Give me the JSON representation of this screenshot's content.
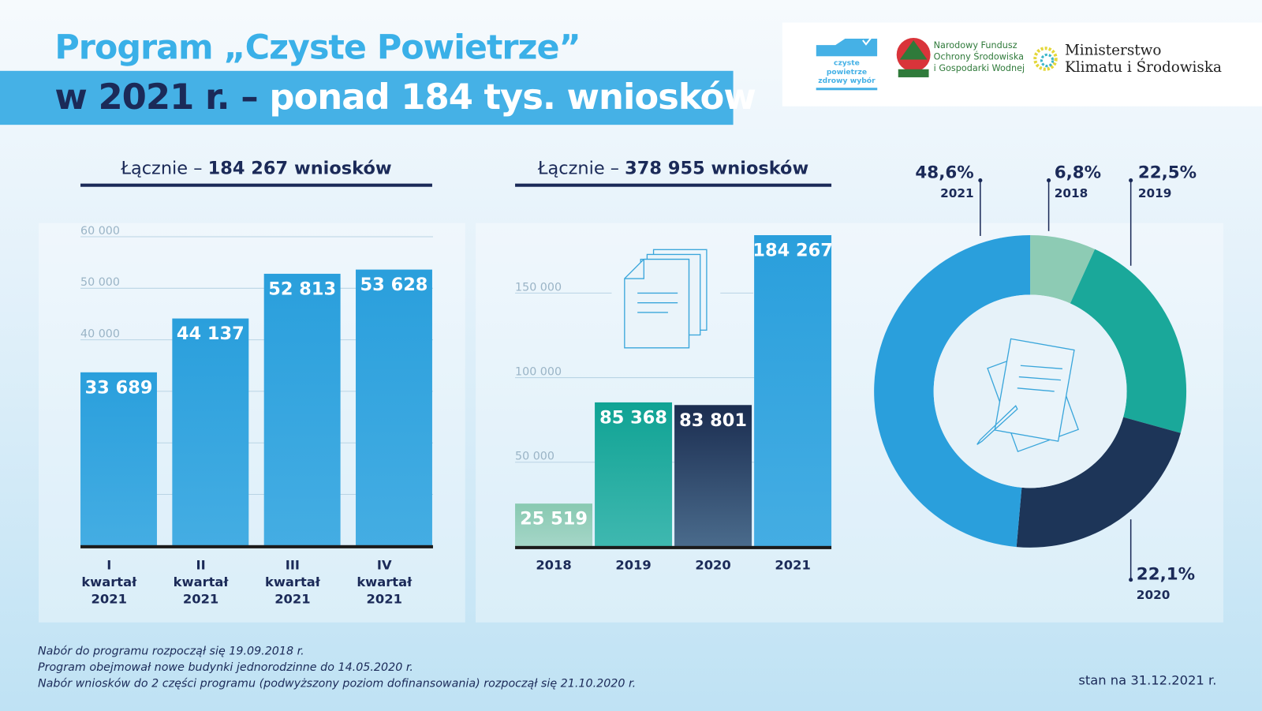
{
  "header": {
    "title_line1": "Program „Czyste Powietrze”",
    "title_line2_dark": "w 2021 r. –",
    "title_line2_light": " ponad 184 tys. wniosków"
  },
  "logos": {
    "cp_logo_text": [
      "czyste powietrze",
      "zdrowy wybór"
    ],
    "nfos_text": [
      "Narodowy Fundusz",
      "Ochrony Środowiska",
      "i Gospodarki Wodnej"
    ],
    "ministry_text": [
      "Ministerstwo",
      "Klimatu i Środowiska"
    ]
  },
  "colors": {
    "accent": "#3ab0e8",
    "navy": "#1b2a58",
    "bar_blue": "#2a9fdc",
    "teal": "#1aa89a",
    "light_green": "#8dcbb4",
    "dark": "#1c3557"
  },
  "chart_data": [
    {
      "type": "bar",
      "subtitle_prefix": "Łącznie – ",
      "subtitle_value": "184 267 wniosków",
      "categories": [
        "I kwartał 2021",
        "II kwartał 2021",
        "III kwartał 2021",
        "IV kwartał 2021"
      ],
      "category_lines": [
        [
          "I",
          "kwartał",
          "2021"
        ],
        [
          "II",
          "kwartał",
          "2021"
        ],
        [
          "III",
          "kwartał",
          "2021"
        ],
        [
          "IV",
          "kwartał",
          "2021"
        ]
      ],
      "values": [
        33689,
        44137,
        52813,
        53628
      ],
      "value_labels": [
        "33 689",
        "44 137",
        "52 813",
        "53 628"
      ],
      "yticks": [
        40000,
        50000,
        60000
      ],
      "ytick_labels": [
        "40 000",
        "50 000",
        "60 000"
      ],
      "ylim": [
        0,
        60000
      ],
      "grid": true
    },
    {
      "type": "bar",
      "subtitle_prefix": "Łącznie – ",
      "subtitle_value": "378 955 wniosków",
      "categories": [
        "2018",
        "2019",
        "2020",
        "2021"
      ],
      "values": [
        25519,
        85368,
        83801,
        184267
      ],
      "value_labels": [
        "25 519",
        "85 368",
        "83 801",
        "184 267"
      ],
      "yticks": [
        50000,
        100000,
        150000
      ],
      "ytick_labels": [
        "50 000",
        "100 000",
        "150 000"
      ],
      "ylim": [
        0,
        184267
      ],
      "grid": true
    },
    {
      "type": "pie",
      "variant": "donut",
      "categories": [
        "2018",
        "2019",
        "2020",
        "2021"
      ],
      "values": [
        6.8,
        22.5,
        22.1,
        48.6
      ],
      "value_labels": [
        "6,8%",
        "22,5%",
        "22,1%",
        "48,6%"
      ]
    }
  ],
  "footer": {
    "notes": [
      "Nabór do programu rozpoczął się 19.09.2018 r.",
      "Program obejmował nowe budynki jednorodzinne do 14.05.2020 r.",
      "Nabór wniosków do 2 części programu (podwyższony poziom dofinansowania) rozpoczął się 21.10.2020 r."
    ],
    "status": "stan na 31.12.2021 r."
  }
}
